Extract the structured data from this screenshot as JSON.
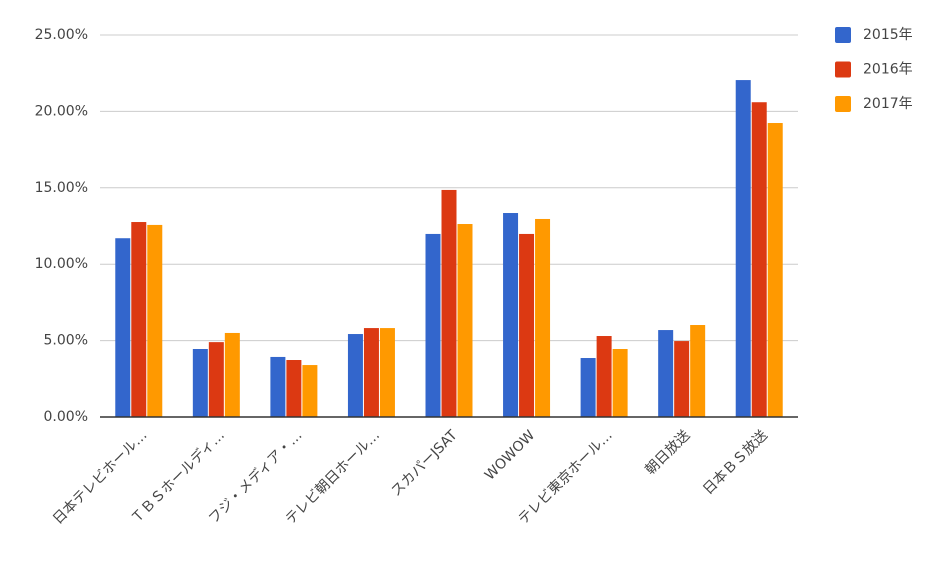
{
  "chart_data": {
    "type": "bar",
    "categories": [
      "日本テレビホール…",
      "ＴＢＳホールディ…",
      "フジ・メディア・…",
      "テレビ朝日ホール…",
      "スカパーJSAT",
      "WOWOW",
      "テレビ東京ホール…",
      "朝日放送",
      "日本ＢＳ放送"
    ],
    "series": [
      {
        "name": "2015年",
        "color": "#3366cc",
        "values": [
          11.7,
          4.45,
          3.93,
          5.43,
          11.98,
          13.35,
          3.86,
          5.69,
          22.05
        ]
      },
      {
        "name": "2016年",
        "color": "#dc3912",
        "values": [
          12.76,
          4.9,
          3.73,
          5.82,
          14.86,
          11.98,
          5.3,
          4.97,
          20.6
        ]
      },
      {
        "name": "2017年",
        "color": "#ff9900",
        "values": [
          12.57,
          5.5,
          3.4,
          5.82,
          12.63,
          12.96,
          4.45,
          6.02,
          19.24
        ]
      }
    ],
    "ylim": [
      0,
      25
    ],
    "yticks": [
      {
        "value": 0,
        "label": "0.00%"
      },
      {
        "value": 5,
        "label": "5.00%"
      },
      {
        "value": 10,
        "label": "10.00%"
      },
      {
        "value": 15,
        "label": "15.00%"
      },
      {
        "value": 20,
        "label": "20.00%"
      },
      {
        "value": 25,
        "label": "25.00%"
      }
    ],
    "grid": true,
    "legend": "right"
  }
}
